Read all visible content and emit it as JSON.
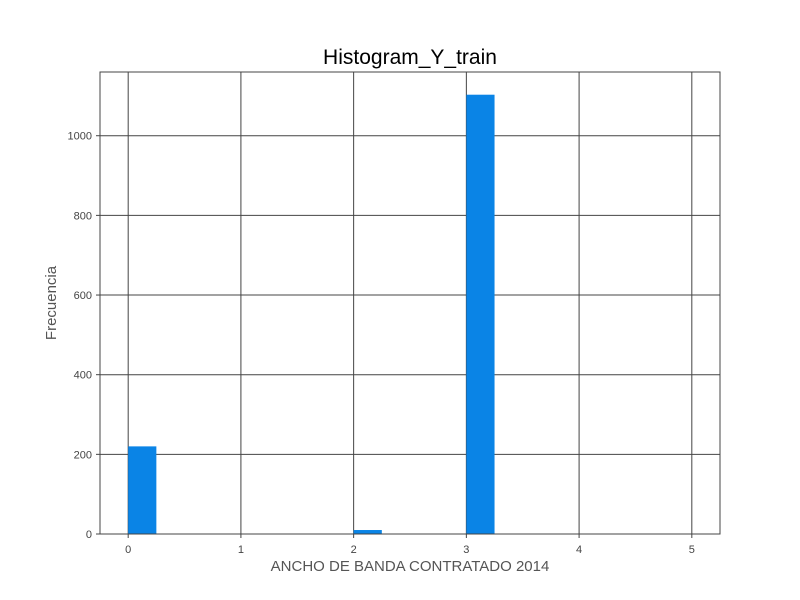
{
  "chart_data": {
    "type": "bar",
    "title": "Histogram_Y_train",
    "xlabel": "ANCHO DE BANDA CONTRATADO 2014",
    "ylabel": "Frecuencia",
    "xlim": [
      -0.25,
      5.25
    ],
    "ylim": [
      0,
      1160
    ],
    "xticks": [
      0,
      1,
      2,
      3,
      4,
      5
    ],
    "yticks": [
      0,
      200,
      400,
      600,
      800,
      1000
    ],
    "grid": true,
    "bar_color": "#0a84e6",
    "bins": [
      {
        "x0": 0.0,
        "x1": 0.25,
        "value": 220
      },
      {
        "x0": 2.0,
        "x1": 2.25,
        "value": 10
      },
      {
        "x0": 3.0,
        "x1": 3.25,
        "value": 1103
      }
    ]
  }
}
